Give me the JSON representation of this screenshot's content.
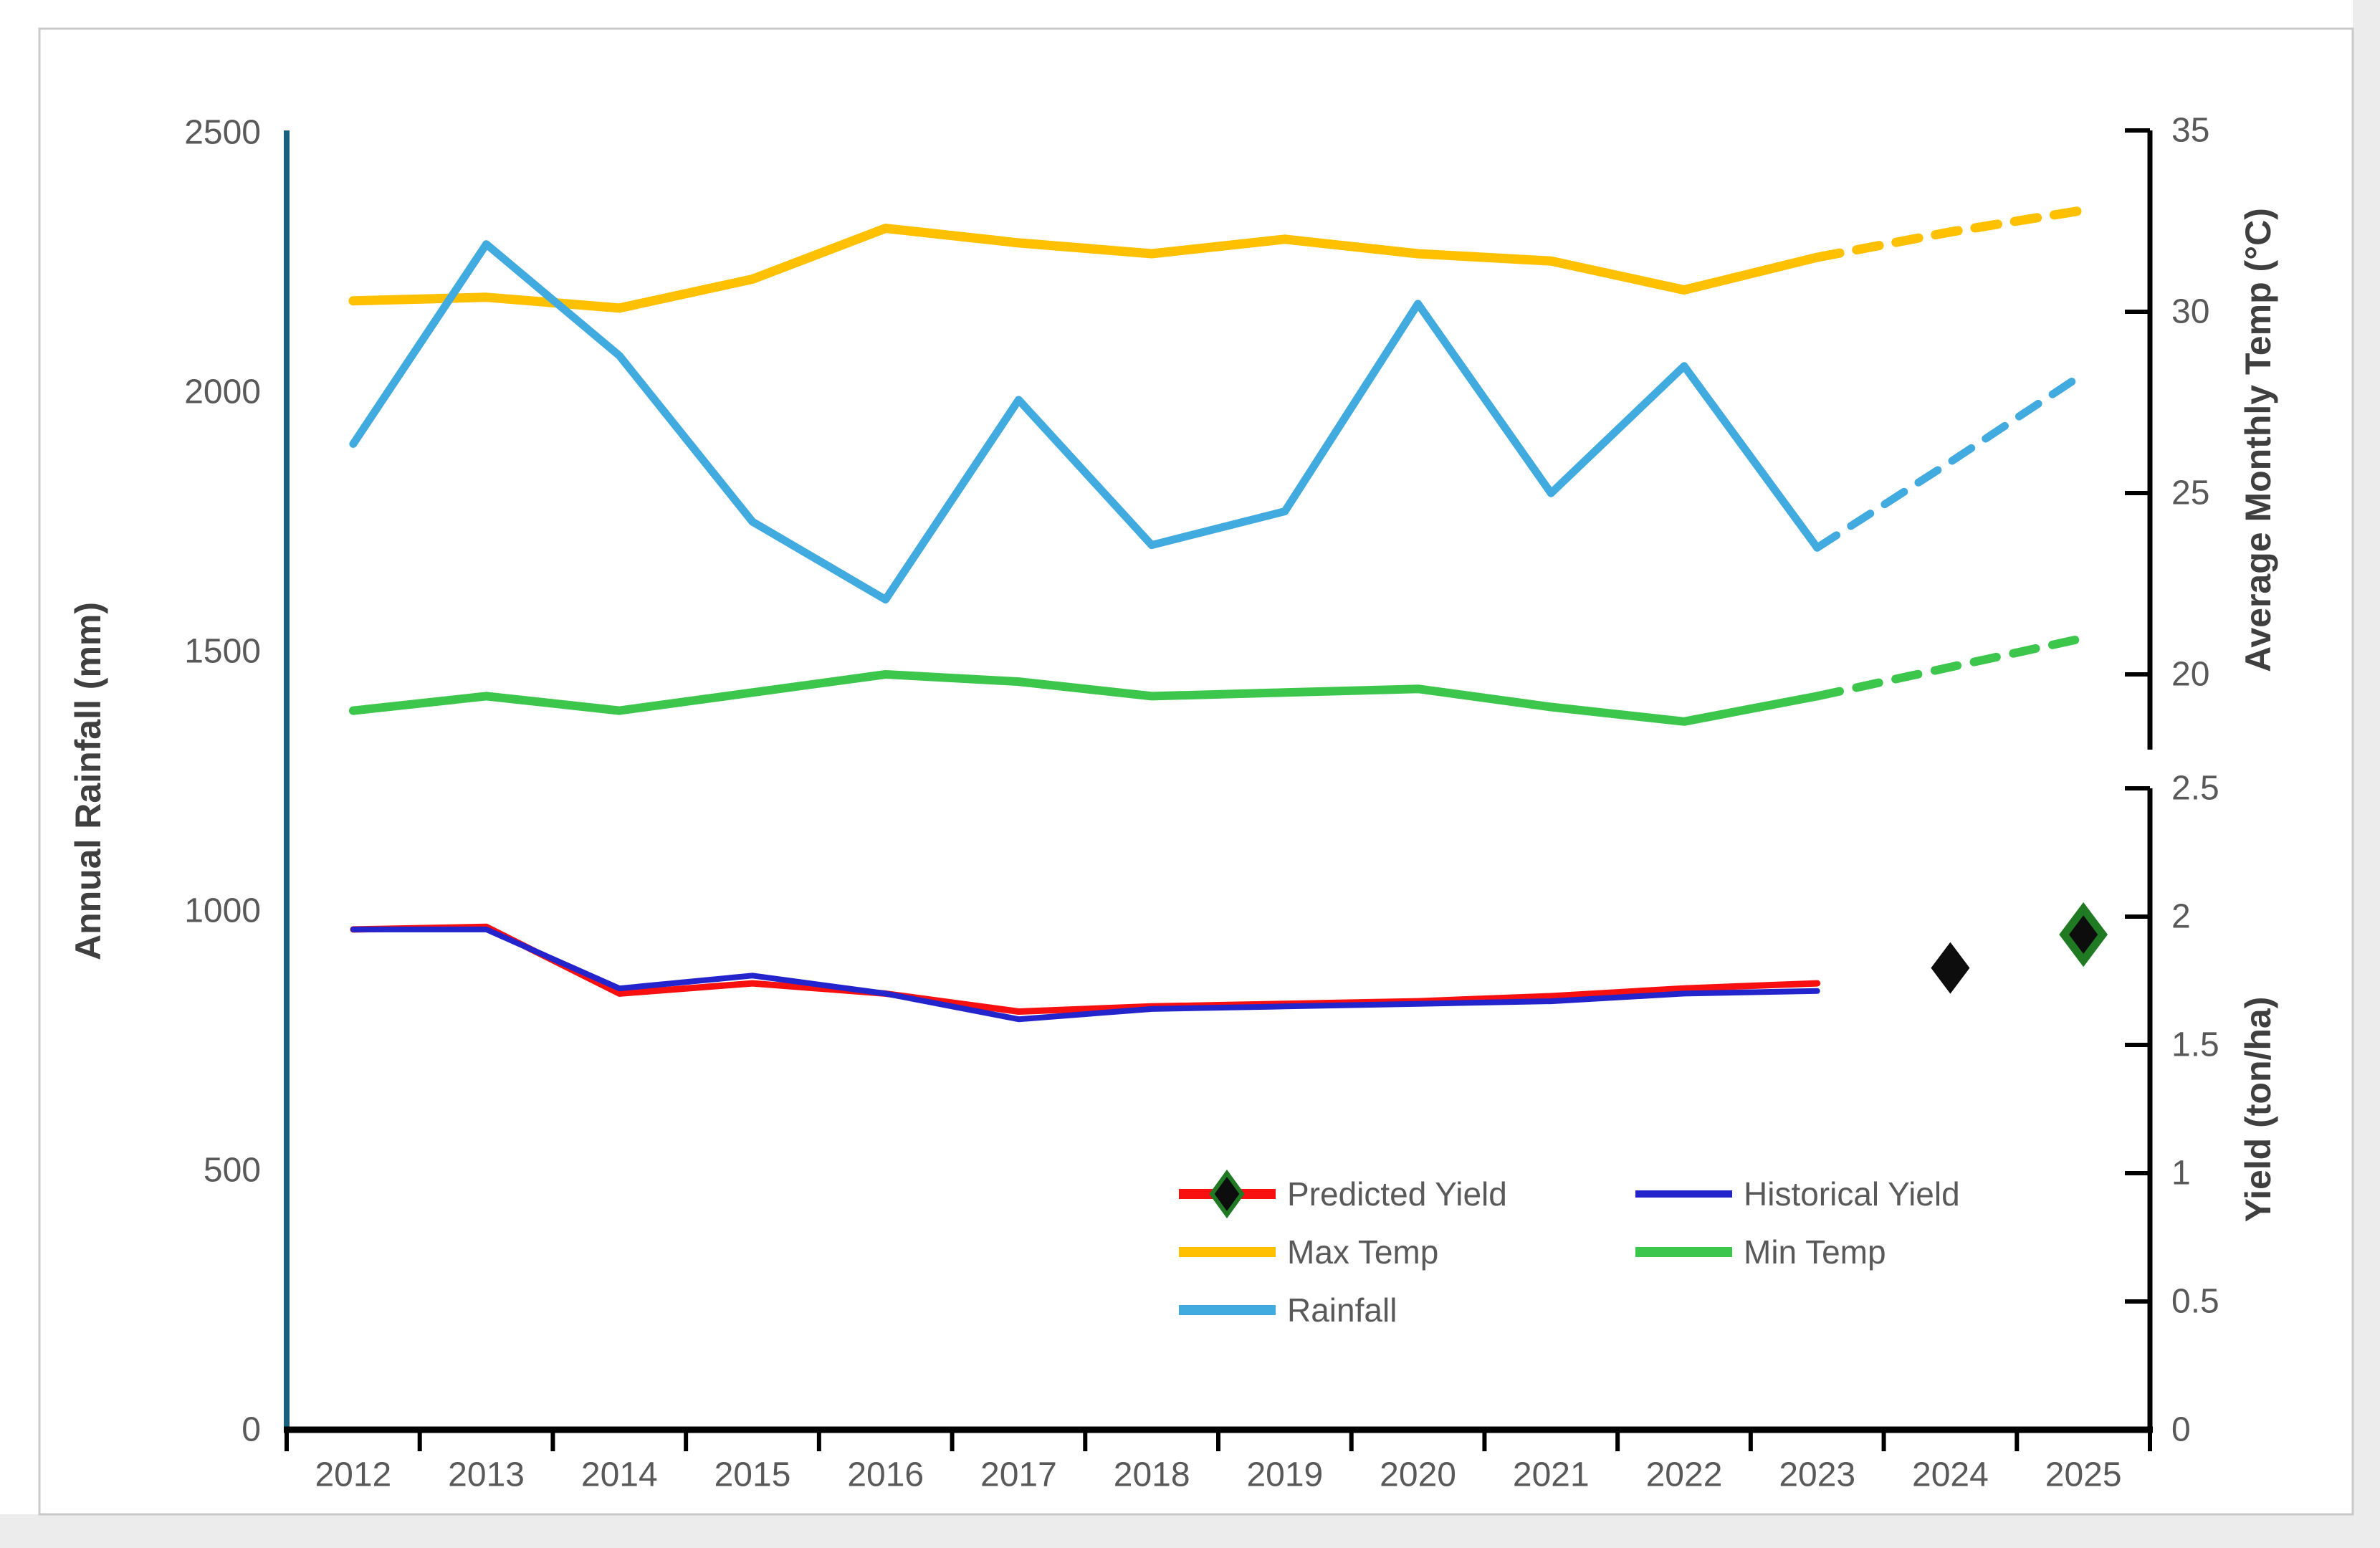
{
  "chart_data": {
    "type": "line",
    "title": "",
    "x": {
      "label": "",
      "categories": [
        "2012",
        "2013",
        "2014",
        "2015",
        "2016",
        "2017",
        "2018",
        "2019",
        "2020",
        "2021",
        "2022",
        "2023",
        "2024",
        "2025"
      ]
    },
    "axes": {
      "rainfall": {
        "label": "Annual Rainfall (mm)",
        "side": "left",
        "min": 0,
        "max": 2500,
        "tick_values": [
          2500,
          2000,
          1500,
          1000,
          500,
          0
        ],
        "tick_labels": [
          "2500",
          "2000",
          "1500",
          "1000",
          "500",
          "0"
        ],
        "axis_color": "#1B607E"
      },
      "temp": {
        "label": "Average Monthly Temp (°C)",
        "side": "right-top",
        "tick_values": [
          35,
          30,
          25,
          20
        ],
        "tick_labels": [
          "35",
          "30",
          "25",
          "20"
        ],
        "axis_color": "#000000"
      },
      "yield": {
        "label": "Yield (ton/ha)",
        "side": "right-bottom",
        "min": 0,
        "max": 2.5,
        "tick_values": [
          2.5,
          2,
          1.5,
          1,
          0.5,
          0
        ],
        "tick_labels": [
          "2.5",
          "2",
          "1.5",
          "1",
          "0.5",
          "0"
        ],
        "axis_color": "#000000"
      }
    },
    "series": [
      {
        "name": "Max Temp",
        "axis": "temp",
        "color": "#FFC000",
        "width": 13,
        "solid_until": 2023,
        "years": [
          2012,
          2013,
          2014,
          2015,
          2016,
          2017,
          2018,
          2019,
          2020,
          2021,
          2022,
          2023,
          2024,
          2025
        ],
        "values": [
          30.3,
          30.4,
          30.1,
          30.9,
          32.3,
          31.9,
          31.6,
          32.0,
          31.6,
          31.4,
          30.6,
          31.5,
          32.2,
          32.8
        ]
      },
      {
        "name": "Rainfall",
        "axis": "rainfall",
        "color": "#41AADF",
        "width": 11,
        "solid_until": 2023,
        "years": [
          2012,
          2013,
          2014,
          2015,
          2016,
          2017,
          2018,
          2019,
          2020,
          2021,
          2022,
          2023,
          2024,
          2025
        ],
        "values": [
          1900,
          2285,
          2070,
          1750,
          1600,
          1985,
          1705,
          1770,
          2170,
          1805,
          2050,
          1700,
          1865,
          2035
        ]
      },
      {
        "name": "Min Temp",
        "axis": "temp",
        "color": "#3CC74C",
        "width": 12,
        "solid_until": 2023,
        "years": [
          2012,
          2013,
          2014,
          2015,
          2016,
          2017,
          2018,
          2019,
          2020,
          2021,
          2022,
          2023,
          2024,
          2025
        ],
        "values": [
          19.0,
          19.4,
          19.0,
          19.5,
          20.0,
          19.8,
          19.4,
          19.5,
          19.6,
          19.1,
          18.7,
          19.4,
          20.2,
          21.0
        ]
      },
      {
        "name": "Predicted Yield",
        "axis": "yield",
        "color": "#F80F0F",
        "width": 9,
        "solid_until": 2023,
        "years": [
          2012,
          2013,
          2014,
          2015,
          2016,
          2017,
          2018,
          2019,
          2020,
          2021,
          2022,
          2023
        ],
        "values": [
          1.95,
          1.96,
          1.7,
          1.74,
          1.7,
          1.63,
          1.65,
          1.66,
          1.67,
          1.69,
          1.72,
          1.74
        ],
        "marker": {
          "shape": "diamond",
          "fill": "#0D0D0D"
        },
        "forecast_markers": [
          {
            "year": 2024,
            "value": 1.8,
            "ring": "none"
          },
          {
            "year": 2025,
            "value": 1.93,
            "ring": "#1F7A23"
          }
        ]
      },
      {
        "name": "Historical Yield",
        "axis": "yield",
        "color": "#2424CC",
        "width": 8,
        "solid_until": 2023,
        "years": [
          2012,
          2013,
          2014,
          2015,
          2016,
          2017,
          2018,
          2019,
          2020,
          2021,
          2022,
          2023
        ],
        "values": [
          1.95,
          1.95,
          1.72,
          1.77,
          1.7,
          1.6,
          1.64,
          1.65,
          1.66,
          1.67,
          1.7,
          1.71
        ]
      }
    ],
    "legend": {
      "position": "inside-bottom-right",
      "items": [
        {
          "label": "Predicted Yield",
          "color": "#F80F0F",
          "marker": "black-green-diamond"
        },
        {
          "label": "Historical Yield",
          "color": "#2424CC",
          "marker": "line"
        },
        {
          "label": "Max Temp",
          "color": "#FFC000",
          "marker": "line"
        },
        {
          "label": "Min Temp",
          "color": "#3CC74C",
          "marker": "line"
        },
        {
          "label": "Rainfall",
          "color": "#41AADF",
          "marker": "line"
        }
      ]
    },
    "style_notes": {
      "dashed_after": 2023,
      "grid": "off",
      "plot_background": "#ffffff",
      "frame_border_color": "#c9c9c9"
    }
  }
}
